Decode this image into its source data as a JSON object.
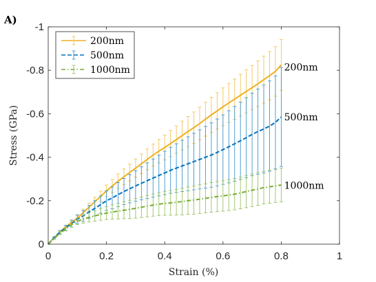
{
  "panel_label": "A)",
  "chart_data": {
    "type": "line",
    "xlabel": "Strain (%)",
    "ylabel": "Stress (GPa)",
    "xlim": [
      0,
      1
    ],
    "ylim": [
      -1,
      0
    ],
    "y_reversed": true,
    "xticks": [
      0,
      0.2,
      0.4,
      0.6,
      0.8,
      1
    ],
    "xtick_labels": [
      "0",
      "0.2",
      "0.4",
      "0.6",
      "0.8",
      "1"
    ],
    "yticks": [
      0,
      -0.2,
      -0.4,
      -0.6,
      -0.8,
      -1
    ],
    "ytick_labels": [
      "0",
      "-0.2",
      "-0.4",
      "-0.6",
      "-0.8",
      "-1"
    ],
    "grid": false,
    "legend_position": "top-left",
    "series": [
      {
        "name": "200nm",
        "color": "#EDB120",
        "line_style": "solid",
        "end_label": "200nm",
        "x": [
          0,
          0.02,
          0.04,
          0.06,
          0.08,
          0.1,
          0.12,
          0.14,
          0.16,
          0.18,
          0.2,
          0.22,
          0.24,
          0.26,
          0.28,
          0.3,
          0.32,
          0.34,
          0.36,
          0.38,
          0.4,
          0.42,
          0.44,
          0.46,
          0.48,
          0.5,
          0.52,
          0.54,
          0.56,
          0.58,
          0.6,
          0.62,
          0.64,
          0.66,
          0.68,
          0.7,
          0.72,
          0.74,
          0.76,
          0.78,
          0.8
        ],
        "y": [
          0,
          -0.03,
          -0.055,
          -0.08,
          -0.1,
          -0.12,
          -0.145,
          -0.17,
          -0.195,
          -0.22,
          -0.245,
          -0.268,
          -0.29,
          -0.31,
          -0.33,
          -0.35,
          -0.37,
          -0.39,
          -0.41,
          -0.428,
          -0.445,
          -0.463,
          -0.481,
          -0.5,
          -0.518,
          -0.536,
          -0.555,
          -0.575,
          -0.595,
          -0.613,
          -0.632,
          -0.65,
          -0.667,
          -0.685,
          -0.703,
          -0.72,
          -0.738,
          -0.757,
          -0.775,
          -0.795,
          -0.825
        ],
        "error": [
          0,
          0.003,
          0.005,
          0.007,
          0.01,
          0.013,
          0.016,
          0.019,
          0.021,
          0.024,
          0.027,
          0.03,
          0.033,
          0.036,
          0.039,
          0.042,
          0.045,
          0.048,
          0.051,
          0.054,
          0.057,
          0.06,
          0.063,
          0.066,
          0.069,
          0.072,
          0.075,
          0.078,
          0.081,
          0.084,
          0.087,
          0.09,
          0.093,
          0.096,
          0.099,
          0.102,
          0.105,
          0.108,
          0.111,
          0.114,
          0.117
        ]
      },
      {
        "name": "500nm",
        "color": "#0072BD",
        "line_style": "dashed",
        "end_label": "500nm",
        "x": [
          0,
          0.02,
          0.04,
          0.06,
          0.08,
          0.1,
          0.12,
          0.14,
          0.16,
          0.18,
          0.2,
          0.22,
          0.24,
          0.26,
          0.28,
          0.3,
          0.32,
          0.34,
          0.36,
          0.38,
          0.4,
          0.42,
          0.44,
          0.46,
          0.48,
          0.5,
          0.52,
          0.54,
          0.56,
          0.58,
          0.6,
          0.62,
          0.64,
          0.66,
          0.68,
          0.7,
          0.72,
          0.74,
          0.76,
          0.78,
          0.8
        ],
        "y": [
          0,
          -0.03,
          -0.055,
          -0.075,
          -0.095,
          -0.115,
          -0.13,
          -0.148,
          -0.165,
          -0.182,
          -0.2,
          -0.213,
          -0.228,
          -0.242,
          -0.255,
          -0.268,
          -0.28,
          -0.292,
          -0.304,
          -0.316,
          -0.328,
          -0.34,
          -0.35,
          -0.36,
          -0.37,
          -0.38,
          -0.39,
          -0.4,
          -0.41,
          -0.422,
          -0.435,
          -0.448,
          -0.462,
          -0.476,
          -0.49,
          -0.505,
          -0.518,
          -0.53,
          -0.543,
          -0.56,
          -0.585
        ],
        "error": [
          0,
          0.004,
          0.008,
          0.012,
          0.016,
          0.02,
          0.025,
          0.03,
          0.035,
          0.04,
          0.045,
          0.05,
          0.055,
          0.06,
          0.065,
          0.07,
          0.076,
          0.082,
          0.088,
          0.094,
          0.1,
          0.106,
          0.112,
          0.118,
          0.124,
          0.13,
          0.136,
          0.142,
          0.148,
          0.154,
          0.16,
          0.166,
          0.172,
          0.178,
          0.184,
          0.19,
          0.196,
          0.202,
          0.208,
          0.214,
          0.228
        ]
      },
      {
        "name": "1000nm",
        "color": "#77AC30",
        "line_style": "dash-dot",
        "end_label": "1000nm",
        "x": [
          0,
          0.02,
          0.04,
          0.06,
          0.08,
          0.1,
          0.12,
          0.14,
          0.16,
          0.18,
          0.2,
          0.22,
          0.24,
          0.26,
          0.28,
          0.3,
          0.32,
          0.34,
          0.36,
          0.38,
          0.4,
          0.42,
          0.44,
          0.46,
          0.48,
          0.5,
          0.52,
          0.54,
          0.56,
          0.58,
          0.6,
          0.62,
          0.64,
          0.66,
          0.68,
          0.7,
          0.72,
          0.74,
          0.76,
          0.78,
          0.8
        ],
        "y": [
          0,
          -0.025,
          -0.05,
          -0.07,
          -0.09,
          -0.105,
          -0.115,
          -0.123,
          -0.13,
          -0.137,
          -0.143,
          -0.148,
          -0.152,
          -0.156,
          -0.16,
          -0.165,
          -0.17,
          -0.175,
          -0.18,
          -0.184,
          -0.188,
          -0.19,
          -0.193,
          -0.196,
          -0.2,
          -0.203,
          -0.207,
          -0.211,
          -0.215,
          -0.219,
          -0.222,
          -0.226,
          -0.23,
          -0.236,
          -0.242,
          -0.248,
          -0.254,
          -0.26,
          -0.264,
          -0.268,
          -0.272
        ],
        "error": [
          0,
          0.003,
          0.006,
          0.009,
          0.012,
          0.015,
          0.018,
          0.021,
          0.024,
          0.027,
          0.03,
          0.033,
          0.036,
          0.039,
          0.042,
          0.045,
          0.047,
          0.049,
          0.051,
          0.053,
          0.055,
          0.057,
          0.059,
          0.061,
          0.063,
          0.065,
          0.066,
          0.067,
          0.068,
          0.069,
          0.07,
          0.071,
          0.072,
          0.073,
          0.074,
          0.075,
          0.075,
          0.075,
          0.076,
          0.076,
          0.077
        ]
      }
    ]
  }
}
